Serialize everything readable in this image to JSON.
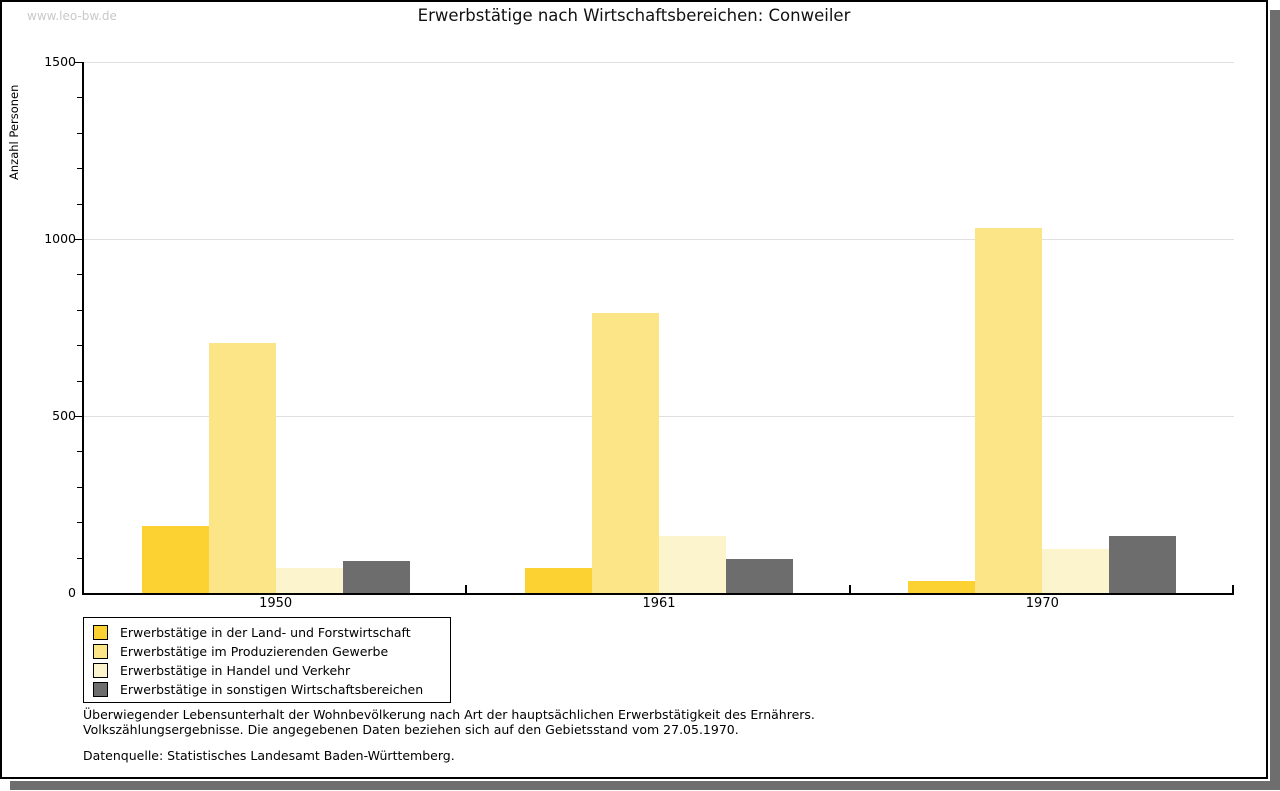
{
  "watermark": "www.leo-bw.de",
  "title": "Erwerbstätige nach Wirtschaftsbereichen: Conweiler",
  "chart_data": {
    "type": "bar",
    "title": "Erwerbstätige nach Wirtschaftsbereichen: Conweiler",
    "xlabel": "",
    "ylabel": "Anzahl Personen",
    "ylim": [
      0,
      1500
    ],
    "yticks": [
      0,
      500,
      1000,
      1500
    ],
    "minor_tick_step": 100,
    "grid": "horizontal-major",
    "legend_position": "bottom-left",
    "categories": [
      "1950",
      "1961",
      "1970"
    ],
    "series": [
      {
        "name": "Erwerbstätige in der Land- und Forstwirtschaft",
        "color": "#FCD232",
        "values": [
          190,
          70,
          35
        ]
      },
      {
        "name": "Erwerbstätige im Produzierenden Gewerbe",
        "color": "#FBE586",
        "values": [
          705,
          790,
          1030
        ]
      },
      {
        "name": "Erwerbstätige in Handel und Verkehr",
        "color": "#FCF4CD",
        "values": [
          70,
          160,
          125
        ]
      },
      {
        "name": "Erwerbstätige in sonstigen Wirtschaftsbereichen",
        "color": "#6D6D6D",
        "values": [
          90,
          95,
          160
        ]
      }
    ]
  },
  "footnotes": {
    "line1": "Überwiegender Lebensunterhalt der Wohnbevölkerung nach Art der hauptsächlichen Erwerbstätigkeit des Ernährers.",
    "line2": "Volkszählungsergebnisse. Die angegebenen Daten beziehen sich auf den Gebietsstand vom 27.05.1970.",
    "source": "Datenquelle: Statistisches Landesamt Baden-Württemberg."
  }
}
